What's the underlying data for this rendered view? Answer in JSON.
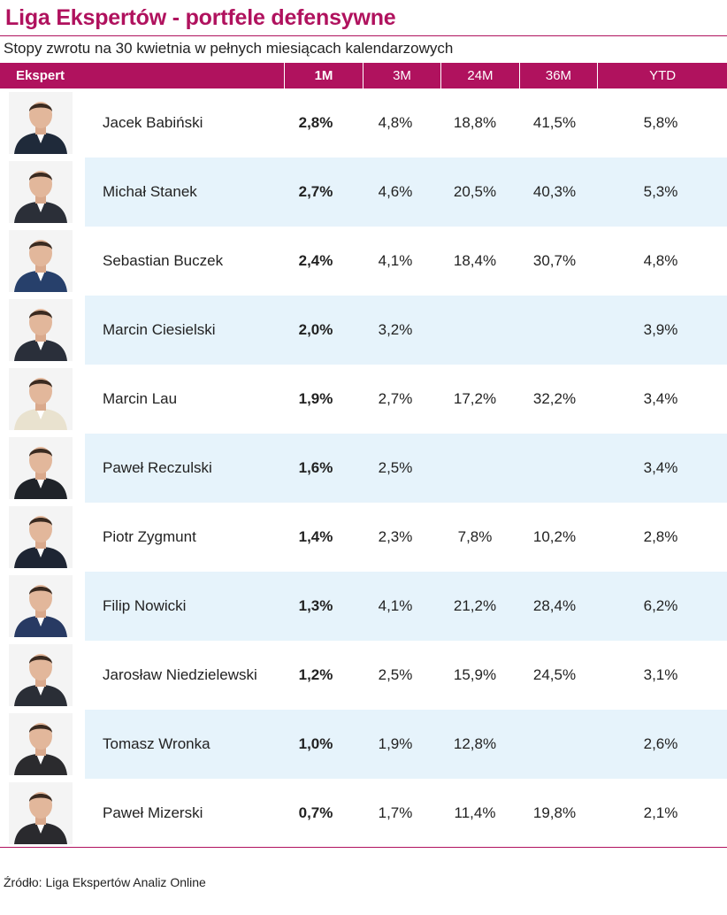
{
  "title": "Liga Ekspertów - portfele defensywne",
  "subtitle": "Stopy zwrotu na 30 kwietnia w pełnych miesiącach kalendarzowych",
  "source": "Źródło: Liga Ekspertów Analiz Online",
  "colors": {
    "accent": "#b0125e",
    "row_alt": "#e6f3fb"
  },
  "chart_data": {
    "type": "table",
    "columns": [
      "Ekspert",
      "1M",
      "3M",
      "24M",
      "36M",
      "YTD"
    ],
    "rows": [
      {
        "name": "Jacek Babiński",
        "m1": "2,8%",
        "m3": "4,8%",
        "m24": "18,8%",
        "m36": "41,5%",
        "ytd": "5,8%"
      },
      {
        "name": "Michał Stanek",
        "m1": "2,7%",
        "m3": "4,6%",
        "m24": "20,5%",
        "m36": "40,3%",
        "ytd": "5,3%"
      },
      {
        "name": "Sebastian Buczek",
        "m1": "2,4%",
        "m3": "4,1%",
        "m24": "18,4%",
        "m36": "30,7%",
        "ytd": "4,8%"
      },
      {
        "name": "Marcin Ciesielski",
        "m1": "2,0%",
        "m3": "3,2%",
        "m24": "",
        "m36": "",
        "ytd": "3,9%"
      },
      {
        "name": "Marcin Lau",
        "m1": "1,9%",
        "m3": "2,7%",
        "m24": "17,2%",
        "m36": "32,2%",
        "ytd": "3,4%"
      },
      {
        "name": "Paweł Reczulski",
        "m1": "1,6%",
        "m3": "2,5%",
        "m24": "",
        "m36": "",
        "ytd": "3,4%"
      },
      {
        "name": "Piotr Zygmunt",
        "m1": "1,4%",
        "m3": "2,3%",
        "m24": "7,8%",
        "m36": "10,2%",
        "ytd": "2,8%"
      },
      {
        "name": "Filip Nowicki",
        "m1": "1,3%",
        "m3": "4,1%",
        "m24": "21,2%",
        "m36": "28,4%",
        "ytd": "6,2%"
      },
      {
        "name": "Jarosław Niedzielewski",
        "m1": "1,2%",
        "m3": "2,5%",
        "m24": "15,9%",
        "m36": "24,5%",
        "ytd": "3,1%"
      },
      {
        "name": "Tomasz Wronka",
        "m1": "1,0%",
        "m3": "1,9%",
        "m24": "12,8%",
        "m36": "",
        "ytd": "2,6%"
      },
      {
        "name": "Paweł Mizerski",
        "m1": "0,7%",
        "m3": "1,7%",
        "m24": "11,4%",
        "m36": "19,8%",
        "ytd": "2,1%"
      }
    ]
  }
}
